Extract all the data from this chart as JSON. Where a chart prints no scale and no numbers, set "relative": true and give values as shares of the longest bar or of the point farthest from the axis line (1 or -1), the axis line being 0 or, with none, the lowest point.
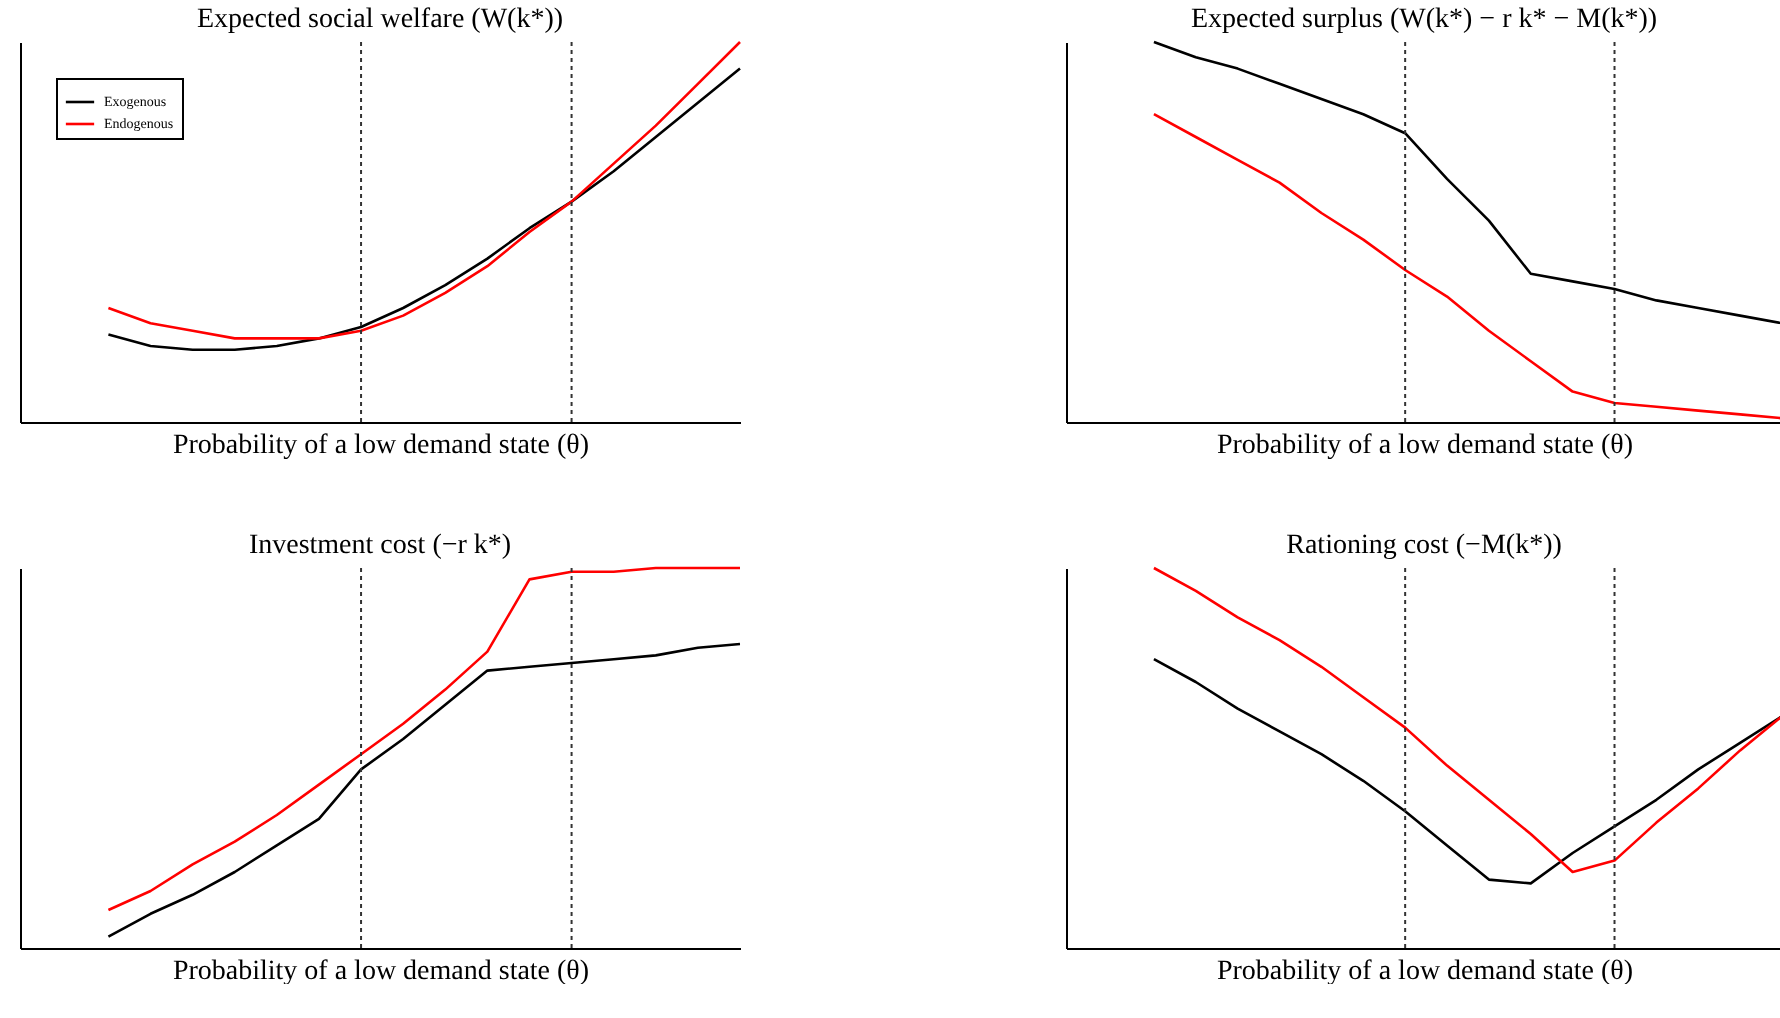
{
  "chart_data": [
    {
      "type": "line",
      "title": "Expected social welfare (W(k*))",
      "xlabel": "Probability of a low demand state (θ)",
      "relative": true,
      "tick_labels": false,
      "legend": "top left",
      "grid": false,
      "categories": [
        null,
        null,
        null,
        null,
        null,
        null,
        null,
        null,
        null,
        null,
        null,
        null,
        null,
        null,
        null,
        null
      ],
      "series": [
        {
          "name": "Exogenous",
          "color": "#000000",
          "values": [
            0.23,
            0.2,
            0.19,
            0.19,
            0.2,
            0.22,
            0.25,
            0.3,
            0.36,
            0.43,
            0.51,
            0.58,
            0.66,
            0.75,
            0.84,
            0.93
          ]
        },
        {
          "name": "Endogenous",
          "color": "#ff0000",
          "values": [
            0.3,
            0.26,
            0.24,
            0.22,
            0.22,
            0.22,
            0.24,
            0.28,
            0.34,
            0.41,
            0.5,
            0.58,
            0.68,
            0.78,
            0.89,
            1
          ]
        }
      ]
    },
    {
      "type": "line",
      "title": "Expected surplus (W(k*) − r k* − M(k*))",
      "xlabel": "Probability of a low demand state (θ)",
      "relative": true,
      "tick_labels": false,
      "grid": false,
      "categories": [
        null,
        null,
        null,
        null,
        null,
        null,
        null,
        null,
        null,
        null,
        null,
        null,
        null,
        null,
        null,
        null
      ],
      "series": [
        {
          "color": "#000000",
          "values": [
            1,
            0.96,
            0.93,
            0.89,
            0.85,
            0.81,
            0.76,
            0.64,
            0.53,
            0.39,
            0.37,
            0.35,
            0.32,
            0.3,
            0.28,
            0.26
          ]
        },
        {
          "color": "#ff0000",
          "values": [
            0.81,
            0.75,
            0.69,
            0.63,
            0.55,
            0.48,
            0.4,
            0.33,
            0.24,
            0.16,
            0.08,
            0.05,
            0.04,
            0.03,
            0.02,
            0.01
          ]
        }
      ]
    },
    {
      "type": "line",
      "title": "Investment cost (−r k*)",
      "xlabel": "Probability of a low demand state (θ)",
      "relative": true,
      "tick_labels": false,
      "grid": false,
      "categories": [
        null,
        null,
        null,
        null,
        null,
        null,
        null,
        null,
        null,
        null,
        null,
        null,
        null,
        null,
        null,
        null
      ],
      "series": [
        {
          "color": "#000000",
          "values": [
            0.03,
            0.09,
            0.14,
            0.2,
            0.27,
            0.34,
            0.47,
            0.55,
            0.64,
            0.73,
            0.74,
            0.75,
            0.76,
            0.77,
            0.79,
            0.8
          ]
        },
        {
          "color": "#ff0000",
          "values": [
            0.1,
            0.15,
            0.22,
            0.28,
            0.35,
            0.43,
            0.51,
            0.59,
            0.68,
            0.78,
            0.97,
            0.99,
            0.99,
            1,
            1,
            1
          ]
        }
      ]
    },
    {
      "type": "line",
      "title": "Rationing cost (−M(k*))",
      "xlabel": "Probability of a low demand state (θ)",
      "relative": true,
      "tick_labels": false,
      "grid": false,
      "categories": [
        null,
        null,
        null,
        null,
        null,
        null,
        null,
        null,
        null,
        null,
        null,
        null,
        null,
        null,
        null,
        null
      ],
      "series": [
        {
          "color": "#000000",
          "values": [
            0.76,
            0.7,
            0.63,
            0.57,
            0.51,
            0.44,
            0.36,
            0.27,
            0.18,
            0.17,
            0.25,
            0.32,
            0.39,
            0.47,
            0.54,
            0.61
          ]
        },
        {
          "color": "#ff0000",
          "values": [
            1,
            0.94,
            0.87,
            0.81,
            0.74,
            0.66,
            0.58,
            0.48,
            0.39,
            0.3,
            0.2,
            0.23,
            0.33,
            0.42,
            0.52,
            0.61
          ]
        }
      ]
    }
  ]
}
